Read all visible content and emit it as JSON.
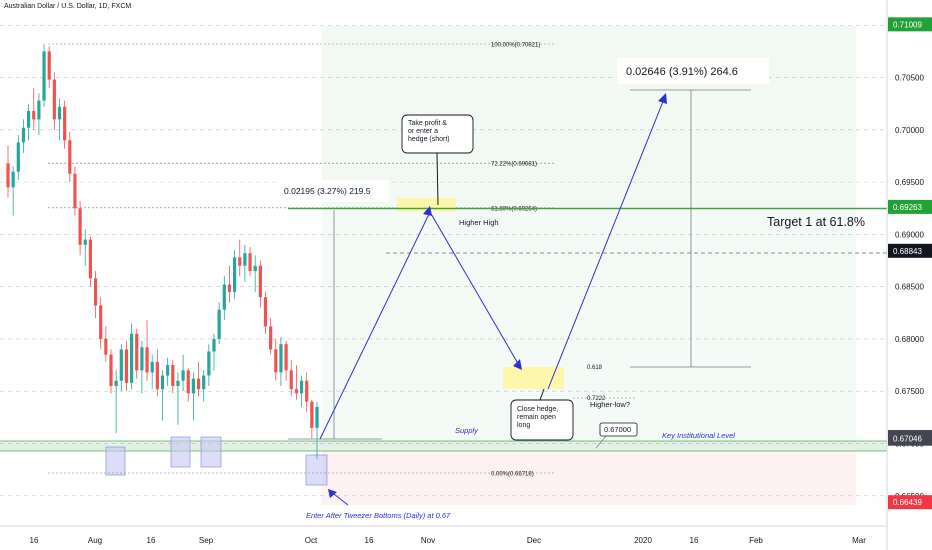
{
  "title": "Australian Dollar / U.S. Dollar, 1D, FXCM",
  "chart_data": {
    "type": "candlestick",
    "ylim": [
      0.6628,
      0.7118
    ],
    "x_ticks": [
      "16",
      "Aug",
      "16",
      "Sep",
      "Oct",
      "16",
      "Nov",
      "Dec",
      "2020",
      "16",
      "Feb",
      "Mar"
    ],
    "y_ticks": [
      0.665,
      0.67,
      0.675,
      0.68,
      0.685,
      0.69,
      0.695,
      0.7,
      0.705,
      0.71
    ],
    "y_tick_labels": [
      "0.66500",
      "0.67000",
      "0.67500",
      "0.68000",
      "0.68500",
      "0.69000",
      "0.69500",
      "0.70000",
      "0.70500",
      "0.71000"
    ],
    "price_tags": [
      {
        "label": "0.71009",
        "value": 0.71009,
        "color": "#21a237"
      },
      {
        "label": "0.69263",
        "value": 0.69263,
        "color": "#21a237"
      },
      {
        "label": "0.68843",
        "value": 0.68843,
        "color": "#131722"
      },
      {
        "label": "0.67062",
        "value": 0.67062,
        "color": "#434651"
      },
      {
        "label": "0.67046",
        "value": 0.67046,
        "color": "#434651"
      },
      {
        "label": "0.66439",
        "value": 0.66439,
        "color": "#f23645"
      }
    ],
    "candles": [
      [
        0.6968,
        0.6985,
        0.6935,
        0.6945
      ],
      [
        0.6945,
        0.6965,
        0.6918,
        0.696
      ],
      [
        0.696,
        0.6995,
        0.6952,
        0.6988
      ],
      [
        0.6988,
        0.701,
        0.6978,
        0.7002
      ],
      [
        0.7002,
        0.7025,
        0.699,
        0.7018
      ],
      [
        0.7018,
        0.704,
        0.7,
        0.701
      ],
      [
        0.701,
        0.7035,
        0.6995,
        0.7028
      ],
      [
        0.7028,
        0.7082,
        0.7022,
        0.7075
      ],
      [
        0.7075,
        0.708,
        0.704,
        0.7048
      ],
      [
        0.7048,
        0.7055,
        0.7,
        0.701
      ],
      [
        0.701,
        0.703,
        0.699,
        0.7022
      ],
      [
        0.7022,
        0.7028,
        0.6982,
        0.699
      ],
      [
        0.699,
        0.6998,
        0.695,
        0.6958
      ],
      [
        0.6958,
        0.6965,
        0.6918,
        0.6925
      ],
      [
        0.6925,
        0.6932,
        0.688,
        0.689
      ],
      [
        0.689,
        0.6905,
        0.687,
        0.6895
      ],
      [
        0.6895,
        0.6898,
        0.685,
        0.6858
      ],
      [
        0.6858,
        0.6865,
        0.682,
        0.6832
      ],
      [
        0.6832,
        0.684,
        0.679,
        0.68
      ],
      [
        0.68,
        0.6812,
        0.6778,
        0.6785
      ],
      [
        0.6785,
        0.679,
        0.6748,
        0.6755
      ],
      [
        0.6755,
        0.677,
        0.671,
        0.676
      ],
      [
        0.676,
        0.6795,
        0.675,
        0.679
      ],
      [
        0.679,
        0.6798,
        0.675,
        0.6758
      ],
      [
        0.6758,
        0.6815,
        0.6752,
        0.6805
      ],
      [
        0.6805,
        0.681,
        0.6762,
        0.677
      ],
      [
        0.677,
        0.6798,
        0.6748,
        0.6792
      ],
      [
        0.6792,
        0.6818,
        0.676,
        0.6768
      ],
      [
        0.6768,
        0.6785,
        0.6752,
        0.6778
      ],
      [
        0.6778,
        0.679,
        0.6745,
        0.6752
      ],
      [
        0.6752,
        0.677,
        0.6722,
        0.6765
      ],
      [
        0.6765,
        0.6782,
        0.6755,
        0.6775
      ],
      [
        0.6775,
        0.678,
        0.6748,
        0.6755
      ],
      [
        0.6755,
        0.6768,
        0.6718,
        0.676
      ],
      [
        0.676,
        0.6785,
        0.675,
        0.677
      ],
      [
        0.677,
        0.6772,
        0.674,
        0.6748
      ],
      [
        0.6748,
        0.6768,
        0.6722,
        0.6762
      ],
      [
        0.6762,
        0.6778,
        0.6745,
        0.6752
      ],
      [
        0.6752,
        0.677,
        0.674,
        0.6765
      ],
      [
        0.6765,
        0.6795,
        0.6755,
        0.6788
      ],
      [
        0.6788,
        0.6805,
        0.677,
        0.68
      ],
      [
        0.68,
        0.6835,
        0.6795,
        0.6828
      ],
      [
        0.6828,
        0.686,
        0.6818,
        0.6852
      ],
      [
        0.6852,
        0.687,
        0.6835,
        0.6845
      ],
      [
        0.6845,
        0.6885,
        0.6838,
        0.6878
      ],
      [
        0.6878,
        0.6895,
        0.686,
        0.687
      ],
      [
        0.687,
        0.689,
        0.6855,
        0.6882
      ],
      [
        0.6882,
        0.6888,
        0.686,
        0.6865
      ],
      [
        0.6865,
        0.688,
        0.6845,
        0.687
      ],
      [
        0.687,
        0.6875,
        0.683,
        0.684
      ],
      [
        0.684,
        0.6845,
        0.6805,
        0.6812
      ],
      [
        0.6812,
        0.682,
        0.6785,
        0.679
      ],
      [
        0.679,
        0.68,
        0.676,
        0.6768
      ],
      [
        0.6768,
        0.6802,
        0.6755,
        0.6795
      ],
      [
        0.6795,
        0.6798,
        0.676,
        0.677
      ],
      [
        0.677,
        0.678,
        0.6745,
        0.6752
      ],
      [
        0.6752,
        0.6775,
        0.6742,
        0.6748
      ],
      [
        0.6748,
        0.6765,
        0.6735,
        0.676
      ],
      [
        0.676,
        0.6768,
        0.673,
        0.674
      ],
      [
        0.674,
        0.6742,
        0.6705,
        0.6715
      ],
      [
        0.6715,
        0.674,
        0.6685,
        0.6735
      ]
    ],
    "fib_levels": [
      {
        "label": "100.00%(0.70821)",
        "value": 0.70821
      },
      {
        "label": "72.22%(0.69681)",
        "value": 0.69681
      },
      {
        "label": "61.80%(0.69254)",
        "value": 0.69254
      },
      {
        "label": "0.00%(0.66718)",
        "value": 0.66718
      }
    ],
    "annotations": {
      "measure_small": "0.02195 (3.27%) 219.5",
      "measure_large": "0.02646 (3.91%) 264.6",
      "callout_take_profit": "Take profit &\nor enter a\nhedge (short)",
      "callout_close_hedge": "Close hedge,\nremain open\nlong",
      "higher_high": "Higher High",
      "higher_low": "Higher-low?",
      "target": "Target 1 at 61.8%",
      "supply": "Supply",
      "key_level": "Key Institutional Level",
      "key_level_price": "0.67000",
      "entry_note": "Enter After Tweezer Bottoms (Daily) at 0.67",
      "retrace_618": "0.618",
      "retrace_7222": "0.7222"
    }
  }
}
